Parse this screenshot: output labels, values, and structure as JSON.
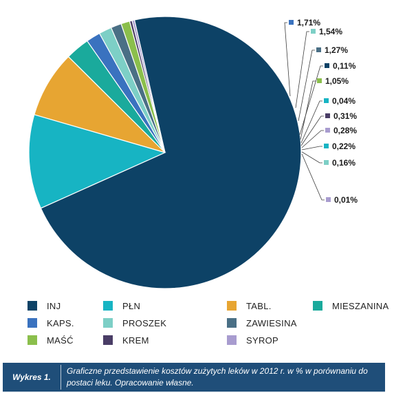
{
  "chart_data": {
    "type": "pie",
    "series": [
      {
        "category": "INJ",
        "value": 72.92,
        "color": "#0d4266"
      },
      {
        "category": "PŁN",
        "value": 11.37,
        "color": "#17b4c3"
      },
      {
        "category": "TABL.",
        "value": 8.06,
        "color": "#e7a532"
      },
      {
        "category": "MIESZANINA",
        "value": 2.91,
        "color": "#1aaa9c"
      },
      {
        "category": "KAPS.",
        "value": 1.71,
        "color": "#3a72bf"
      },
      {
        "category": "PROSZEK",
        "value": 1.54,
        "color": "#7dcfc6"
      },
      {
        "category": "ZAWIESINA",
        "value": 1.27,
        "color": "#4a6f85"
      },
      {
        "category": "MAŚĆ",
        "value": 1.05,
        "color": "#8bbf4c"
      },
      {
        "category": "KREM",
        "value": 0.31,
        "color": "#4a3d66"
      },
      {
        "category": "SYROP",
        "value": 0.28,
        "color": "#a89ccf"
      }
    ],
    "labels": [
      {
        "text": "1,71%",
        "color": "#3a72bf"
      },
      {
        "text": "1,54%",
        "color": "#7dcfc6"
      },
      {
        "text": "1,27%",
        "color": "#4a6f85"
      },
      {
        "text": "0,11%",
        "color": "#0d4266"
      },
      {
        "text": "1,05%",
        "color": "#8bbf4c"
      },
      {
        "text": "0,04%",
        "color": "#17b4c3"
      },
      {
        "text": "0,31%",
        "color": "#4a3d66"
      },
      {
        "text": "0,28%",
        "color": "#a89ccf"
      },
      {
        "text": "0,22%",
        "color": "#17b4c3"
      },
      {
        "text": "0,16%",
        "color": "#7dcfc6"
      },
      {
        "text": "0,01%",
        "color": "#a89ccf"
      }
    ],
    "legend": [
      {
        "label": "INJ",
        "color": "#0d4266"
      },
      {
        "label": "MIESZANINA",
        "color": "#1aaa9c"
      },
      {
        "label": "ZAWIESINA",
        "color": "#4a6f85"
      },
      {
        "label": "SYROP",
        "color": "#a89ccf"
      },
      {
        "label": "PŁN",
        "color": "#17b4c3"
      },
      {
        "label": "KAPS.",
        "color": "#3a72bf"
      },
      {
        "label": "MAŚĆ",
        "color": "#8bbf4c"
      },
      {
        "label": "TABL.",
        "color": "#e7a532"
      },
      {
        "label": "PROSZEK",
        "color": "#7dcfc6"
      },
      {
        "label": "KREM",
        "color": "#4a3d66"
      }
    ]
  },
  "caption": {
    "label": "Wykres 1.",
    "text": "Graficzne przedstawienie kosztów zużytych leków w 2012 r. w % w porównaniu do postaci leku. Opracowanie własne."
  }
}
